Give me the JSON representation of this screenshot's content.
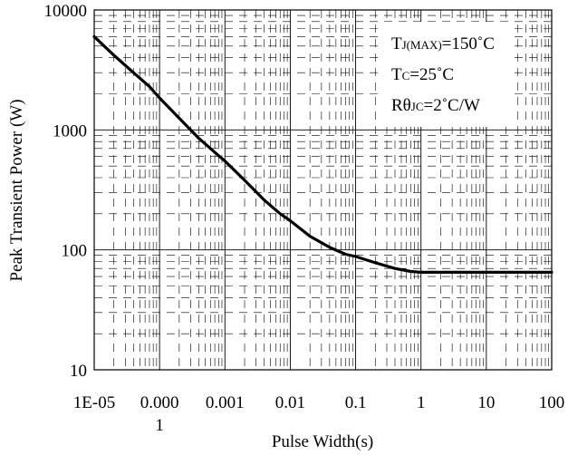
{
  "chart_data": {
    "type": "line",
    "xscale": "log",
    "yscale": "log",
    "xlim": [
      1e-05,
      100
    ],
    "ylim": [
      10,
      10000
    ],
    "xlabel": "Pulse Width(s)",
    "ylabel": "Peak Transient Power (W)",
    "x_ticks": [
      {
        "value": 1e-05,
        "label": "1E-05"
      },
      {
        "value": 0.0001,
        "label": "0.000",
        "label2": "1"
      },
      {
        "value": 0.001,
        "label": "0.001"
      },
      {
        "value": 0.01,
        "label": "0.01"
      },
      {
        "value": 0.1,
        "label": "0.1"
      },
      {
        "value": 1,
        "label": "1"
      },
      {
        "value": 10,
        "label": "10"
      },
      {
        "value": 100,
        "label": "100"
      }
    ],
    "y_ticks": [
      {
        "value": 10,
        "label": "10"
      },
      {
        "value": 100,
        "label": "100"
      },
      {
        "value": 1000,
        "label": "1000"
      },
      {
        "value": 10000,
        "label": "10000"
      }
    ],
    "grid": true,
    "series": [
      {
        "color": "#000000",
        "x": [
          1e-05,
          2e-05,
          4e-05,
          7e-05,
          0.0001,
          0.0002,
          0.0004,
          0.0007,
          0.001,
          0.002,
          0.004,
          0.007,
          0.01,
          0.02,
          0.04,
          0.07,
          0.1,
          0.2,
          0.4,
          0.7,
          1,
          2,
          5,
          10,
          100
        ],
        "y": [
          6000,
          4200,
          3000,
          2300,
          1850,
          1250,
          850,
          650,
          550,
          380,
          260,
          200,
          175,
          130,
          105,
          92,
          88,
          78,
          70,
          66,
          65,
          65,
          65,
          65,
          65
        ]
      }
    ],
    "annotations": [
      {
        "main": "T",
        "sub": "J(MAX)",
        "rest": "=150˚C"
      },
      {
        "main": "T",
        "sub": "C",
        "rest": "=25˚C"
      },
      {
        "main": "Rθ",
        "sub": "JC",
        "rest": "=2˚C/W"
      }
    ]
  }
}
